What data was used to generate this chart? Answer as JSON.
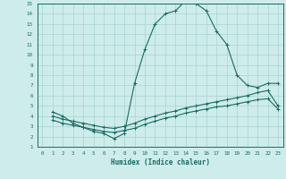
{
  "xlabel": "Humidex (Indice chaleur)",
  "xlim": [
    -0.5,
    23.5
  ],
  "ylim": [
    1,
    15
  ],
  "xticks": [
    0,
    1,
    2,
    3,
    4,
    5,
    6,
    7,
    8,
    9,
    10,
    11,
    12,
    13,
    14,
    15,
    16,
    17,
    18,
    19,
    20,
    21,
    22,
    23
  ],
  "yticks": [
    1,
    2,
    3,
    4,
    5,
    6,
    7,
    8,
    9,
    10,
    11,
    12,
    13,
    14,
    15
  ],
  "bg_color": "#cdecea",
  "grid_color": "#a8d5d1",
  "line_color": "#1a6b60",
  "line1_x": [
    1,
    2,
    3,
    4,
    5,
    6,
    7,
    8,
    9,
    10,
    11,
    12,
    13,
    14,
    15,
    16,
    17,
    18,
    19,
    20,
    21,
    22,
    23
  ],
  "line1_y": [
    4.4,
    4.0,
    3.3,
    2.9,
    2.5,
    2.3,
    1.8,
    2.3,
    7.2,
    10.5,
    13.0,
    14.0,
    14.3,
    15.3,
    15.0,
    14.3,
    12.3,
    11.0,
    8.0,
    7.0,
    6.8,
    7.2,
    7.2
  ],
  "line2_x": [
    1,
    2,
    3,
    4,
    5,
    6,
    7,
    8,
    9,
    10,
    11,
    12,
    13,
    14,
    15,
    16,
    17,
    18,
    19,
    20,
    21,
    22,
    23
  ],
  "line2_y": [
    3.6,
    3.3,
    3.1,
    2.9,
    2.7,
    2.5,
    2.4,
    2.6,
    2.8,
    3.2,
    3.5,
    3.8,
    4.0,
    4.3,
    4.5,
    4.7,
    4.9,
    5.0,
    5.2,
    5.4,
    5.6,
    5.7,
    4.7
  ],
  "line3_x": [
    1,
    2,
    3,
    4,
    5,
    6,
    7,
    8,
    9,
    10,
    11,
    12,
    13,
    14,
    15,
    16,
    17,
    18,
    19,
    20,
    21,
    22,
    23
  ],
  "line3_y": [
    4.0,
    3.7,
    3.5,
    3.3,
    3.1,
    2.9,
    2.8,
    3.0,
    3.3,
    3.7,
    4.0,
    4.3,
    4.5,
    4.8,
    5.0,
    5.2,
    5.4,
    5.6,
    5.8,
    6.0,
    6.3,
    6.5,
    5.0
  ]
}
